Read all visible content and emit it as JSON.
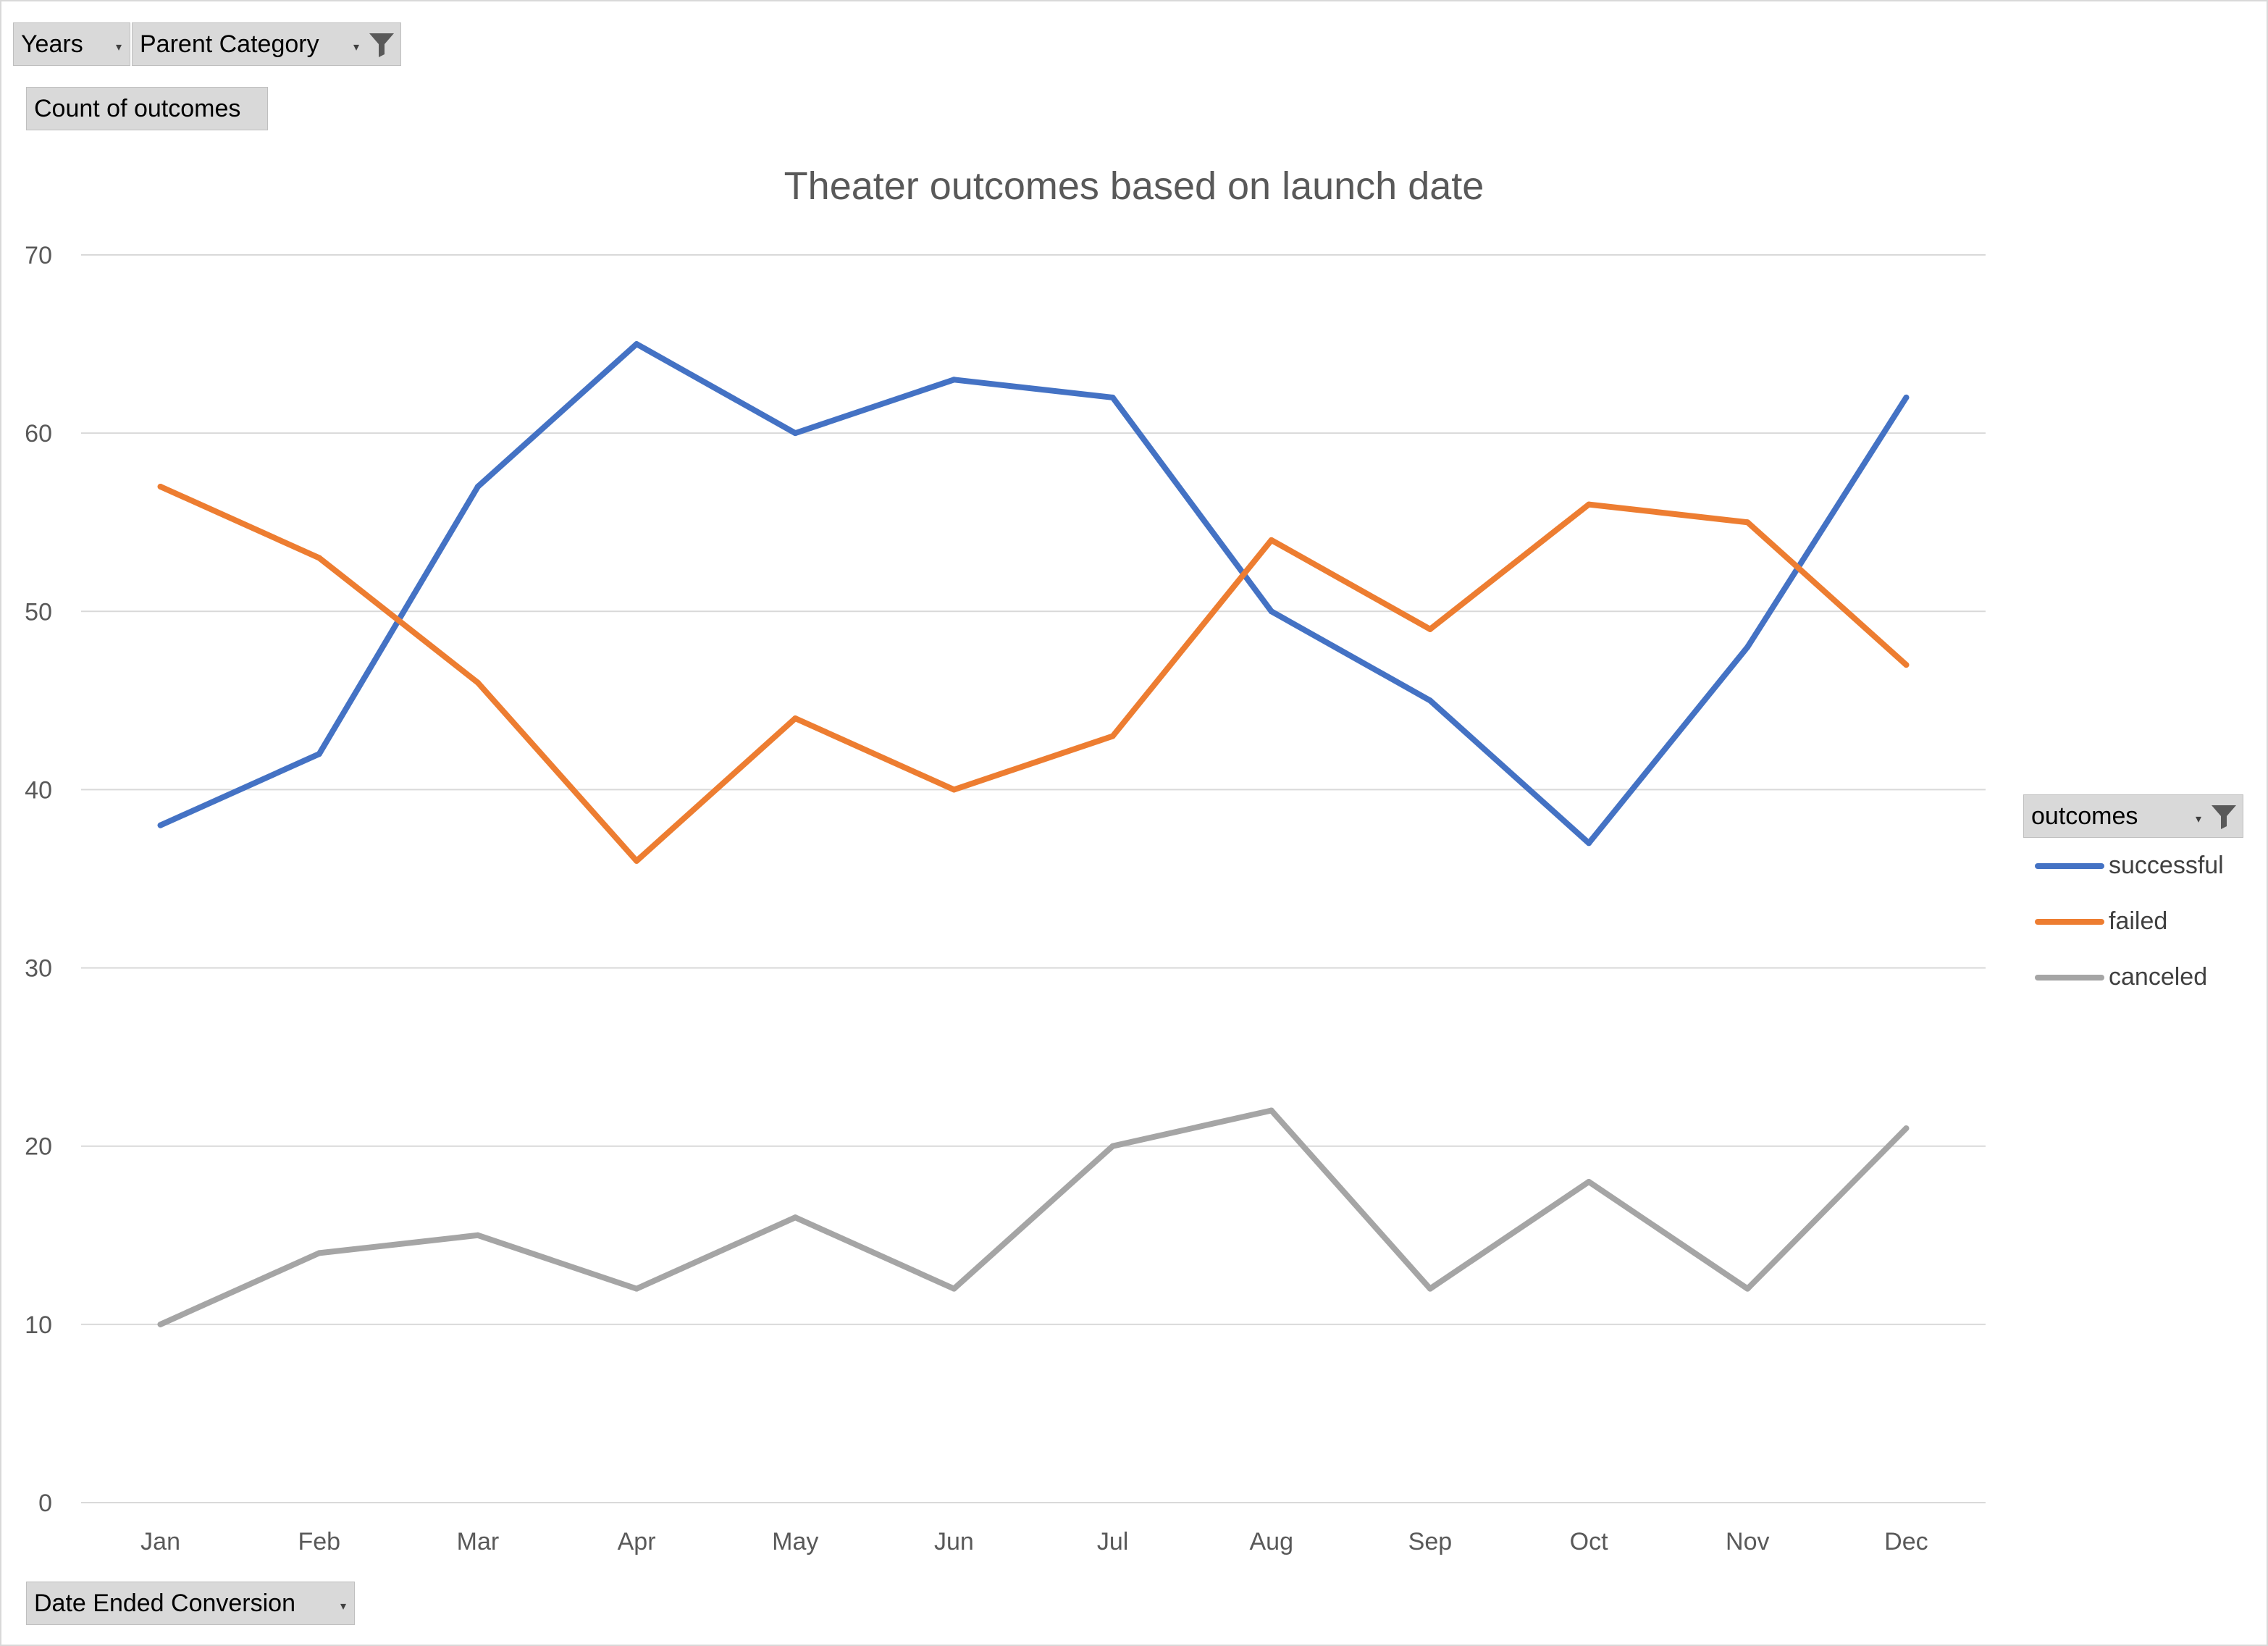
{
  "filters": {
    "years_label": "Years",
    "parent_category_label": "Parent Category",
    "values_label": "Count of outcomes",
    "axis_field_label": "Date Ended Conversion",
    "legend_field_label": "outcomes"
  },
  "colors": {
    "successful": "#4472c4",
    "failed": "#ed7d31",
    "canceled": "#a5a5a5",
    "gridline": "#d9d9d9",
    "axis_text": "#595959",
    "button_bg": "#d9d9d9"
  },
  "icons": {
    "filter": "funnel-icon",
    "dropdown": "dropdown-arrow-icon"
  },
  "chart_data": {
    "type": "line",
    "title": "Theater outcomes based on launch date",
    "xlabel": "",
    "ylabel": "",
    "ylim": [
      0,
      70
    ],
    "yticks": [
      "0",
      "10",
      "20",
      "30",
      "40",
      "50",
      "60",
      "70"
    ],
    "grid": true,
    "legend_placement": "right",
    "categories": [
      "Jan",
      "Feb",
      "Mar",
      "Apr",
      "May",
      "Jun",
      "Jul",
      "Aug",
      "Sep",
      "Oct",
      "Nov",
      "Dec"
    ],
    "series": [
      {
        "name": "successful",
        "values": [
          38,
          42,
          57,
          65,
          60,
          63,
          62,
          50,
          45,
          37,
          48,
          62
        ]
      },
      {
        "name": "failed",
        "values": [
          57,
          53,
          46,
          36,
          44,
          40,
          43,
          54,
          49,
          56,
          55,
          47
        ]
      },
      {
        "name": "canceled",
        "values": [
          10,
          14,
          15,
          12,
          16,
          12,
          20,
          22,
          12,
          18,
          12,
          21
        ]
      }
    ]
  }
}
